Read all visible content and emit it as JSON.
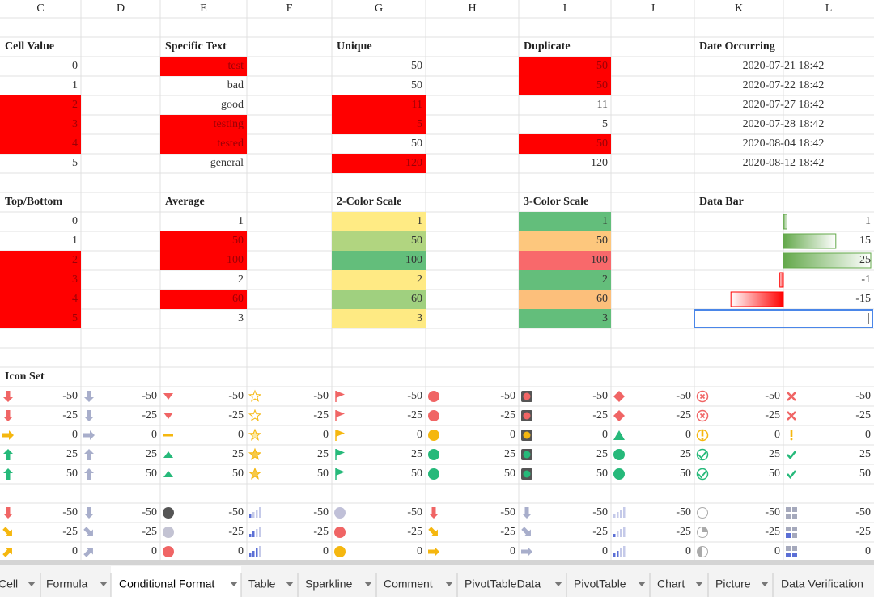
{
  "column_headers": [
    "C",
    "D",
    "E",
    "F",
    "G",
    "H",
    "I",
    "J",
    "K",
    "L"
  ],
  "highlight_color": "#ff0000",
  "cell_value": {
    "title": "Cell Value",
    "values": [
      0,
      1,
      2,
      3,
      4,
      5
    ],
    "highlight": [
      false,
      false,
      true,
      true,
      true,
      false
    ]
  },
  "specific_text": {
    "title": "Specific Text",
    "values": [
      "test",
      "bad",
      "good",
      "testing",
      "tested",
      "general"
    ],
    "highlight": [
      true,
      false,
      false,
      true,
      true,
      false
    ]
  },
  "unique": {
    "title": "Unique",
    "values": [
      50,
      50,
      11,
      5,
      50,
      120
    ],
    "highlight": [
      false,
      false,
      true,
      true,
      false,
      true
    ]
  },
  "duplicate": {
    "title": "Duplicate",
    "values": [
      50,
      50,
      11,
      5,
      50,
      120
    ],
    "highlight": [
      true,
      true,
      false,
      false,
      true,
      false
    ]
  },
  "date_occurring": {
    "title": "Date Occurring",
    "values": [
      "2020-07-21 18:42",
      "2020-07-22 18:42",
      "2020-07-27 18:42",
      "2020-07-28 18:42",
      "2020-08-04 18:42",
      "2020-08-12 18:42"
    ]
  },
  "top_bottom": {
    "title": "Top/Bottom",
    "values": [
      0,
      1,
      2,
      3,
      4,
      5
    ],
    "highlight": [
      false,
      false,
      true,
      true,
      true,
      true
    ]
  },
  "average": {
    "title": "Average",
    "values": [
      1,
      50,
      100,
      2,
      60,
      3
    ],
    "highlight": [
      false,
      true,
      true,
      false,
      true,
      false
    ]
  },
  "two_color_scale": {
    "title": "2-Color Scale",
    "values": [
      1,
      50,
      100,
      2,
      60,
      3
    ],
    "colors": [
      "#ffeb84",
      "#b1d580",
      "#63be7b",
      "#ffea84",
      "#a0d07f",
      "#feea83"
    ]
  },
  "three_color_scale": {
    "title": "3-Color Scale",
    "values": [
      1,
      50,
      100,
      2,
      60,
      3
    ],
    "colors": [
      "#63be7b",
      "#fdc77d",
      "#f8696b",
      "#64be7b",
      "#fcbf7b",
      "#63be7b"
    ]
  },
  "data_bar": {
    "title": "Data Bar",
    "values": [
      1,
      15,
      25,
      -1,
      -15
    ],
    "positive_color": "#63a84a",
    "negative_color": "#ff0000"
  },
  "icon_set": {
    "title": "Icon Set",
    "blocks": [
      [
        [
          -50,
          -50,
          -50,
          -50,
          -50,
          -50,
          -50,
          -50,
          -50,
          -50
        ],
        [
          -25,
          -25,
          -25,
          -25,
          -25,
          -25,
          -25,
          -25,
          -25,
          -25
        ],
        [
          0,
          0,
          0,
          0,
          0,
          0,
          0,
          0,
          0,
          0
        ],
        [
          25,
          25,
          25,
          25,
          25,
          25,
          25,
          25,
          25,
          25
        ],
        [
          50,
          50,
          50,
          50,
          50,
          50,
          50,
          50,
          50,
          50
        ]
      ],
      [
        [
          -50,
          -50,
          -50,
          -50,
          -50,
          -50,
          -50,
          -50,
          -50,
          -50
        ],
        [
          -25,
          -25,
          -25,
          -25,
          -25,
          -25,
          -25,
          -25,
          -25,
          -25
        ],
        [
          0,
          0,
          0,
          0,
          0,
          0,
          0,
          0,
          0,
          0
        ]
      ]
    ]
  },
  "tabs": {
    "names": [
      "Cell",
      "Formula",
      "Conditional Format",
      "Table",
      "Sparkline",
      "Comment",
      "PivotTableData",
      "PivotTable",
      "Chart",
      "Picture",
      "Data Verification"
    ],
    "active": 2
  }
}
